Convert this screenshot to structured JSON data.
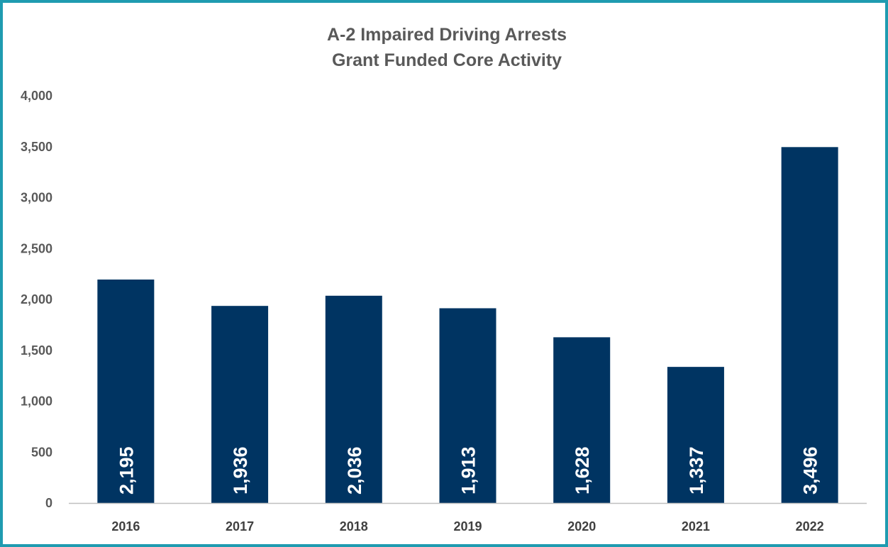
{
  "chart_data": {
    "type": "bar",
    "title": "A-2 Impaired Driving Arrests",
    "subtitle": "Grant Funded Core Activity",
    "xlabel": "",
    "ylabel": "",
    "categories": [
      "2016",
      "2017",
      "2018",
      "2019",
      "2020",
      "2021",
      "2022"
    ],
    "values": [
      2195,
      1936,
      2036,
      1913,
      1628,
      1337,
      3496
    ],
    "data_labels": [
      "2,195",
      "1,936",
      "2,036",
      "1,913",
      "1,628",
      "1,337",
      "3,496"
    ],
    "ylim": [
      0,
      4000
    ],
    "yticks": [
      0,
      500,
      1000,
      1500,
      2000,
      2500,
      3000,
      3500,
      4000
    ],
    "ytick_labels": [
      "0",
      "500",
      "1,000",
      "1,500",
      "2,000",
      "2,500",
      "3,000",
      "3,500",
      "4,000"
    ],
    "grid": false,
    "legend": "none",
    "bar_color": "#003462",
    "border_color": "#1f9bb0"
  }
}
